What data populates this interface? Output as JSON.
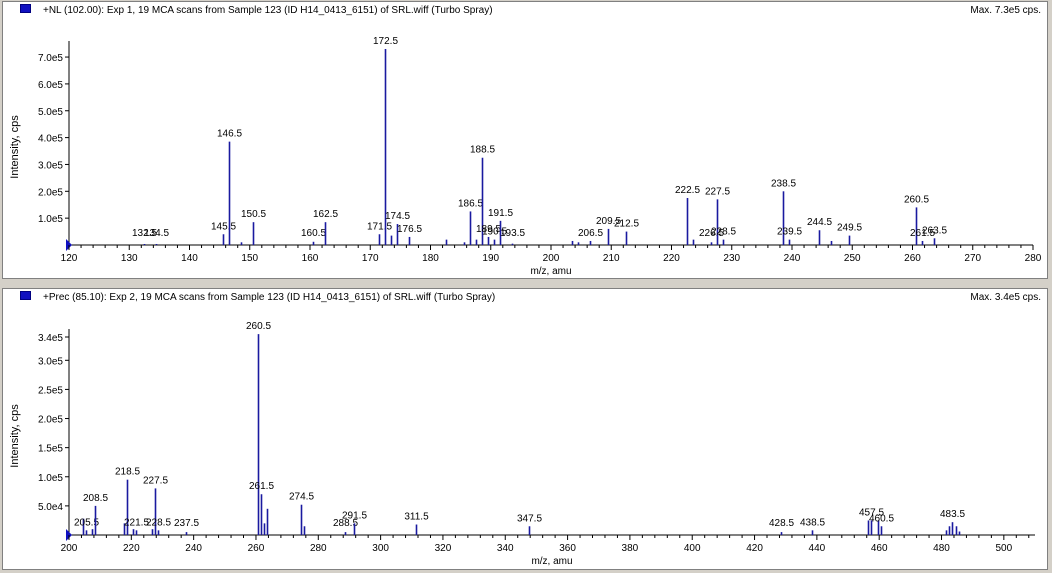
{
  "colors": {
    "peak": "#1a1aa0",
    "axis": "#000000",
    "icon": "#1010c0",
    "background": "#ffffff"
  },
  "icons": {
    "pane_icon": "blue-square-icon",
    "origin_marker": "blue-triangle-icon"
  },
  "panes": [
    {
      "title": "+NL (102.00): Exp 1, 19 MCA scans from Sample 123 (ID H14_0413_6151) of SRL.wiff (Turbo Spray)",
      "max": "Max. 7.3e5 cps."
    },
    {
      "title": "+Prec (85.10): Exp 2, 19 MCA scans from Sample 123 (ID H14_0413_6151) of SRL.wiff (Turbo Spray)",
      "max": "Max. 3.4e5 cps."
    }
  ],
  "chart_data": [
    {
      "type": "bar",
      "title": "+NL (102.00): Exp 1, 19 MCA scans from Sample 123 (ID H14_0413_6151) of SRL.wiff (Turbo Spray)",
      "xlabel": "m/z, amu",
      "ylabel": "Intensity, cps",
      "xlim": [
        120,
        280
      ],
      "ylim": [
        0,
        730000
      ],
      "xticks": [
        120,
        130,
        140,
        150,
        160,
        170,
        180,
        190,
        200,
        210,
        220,
        230,
        240,
        250,
        260,
        270,
        280
      ],
      "yticks": [
        {
          "v": 100000,
          "t": "1.0e5"
        },
        {
          "v": 200000,
          "t": "2.0e5"
        },
        {
          "v": 300000,
          "t": "3.0e5"
        },
        {
          "v": 400000,
          "t": "4.0e5"
        },
        {
          "v": 500000,
          "t": "5.0e5"
        },
        {
          "v": 600000,
          "t": "6.0e5"
        },
        {
          "v": 700000,
          "t": "7.0e5"
        }
      ],
      "peaks": [
        {
          "x": 132.5,
          "y": 2000,
          "label": "132.5"
        },
        {
          "x": 134.5,
          "y": 3000,
          "label": "134.5"
        },
        {
          "x": 145.5,
          "y": 40000,
          "label": "145.5"
        },
        {
          "x": 146.5,
          "y": 385000,
          "label": "146.5"
        },
        {
          "x": 148.5,
          "y": 10000
        },
        {
          "x": 150.5,
          "y": 85000,
          "label": "150.5"
        },
        {
          "x": 160.5,
          "y": 12000,
          "label": "160.5"
        },
        {
          "x": 162.5,
          "y": 85000,
          "label": "162.5"
        },
        {
          "x": 171.5,
          "y": 40000,
          "label": "171.5"
        },
        {
          "x": 172.5,
          "y": 730000,
          "label": "172.5"
        },
        {
          "x": 173.5,
          "y": 35000
        },
        {
          "x": 174.5,
          "y": 78000,
          "label": "174.5"
        },
        {
          "x": 176.5,
          "y": 30000,
          "label": "176.5"
        },
        {
          "x": 182.5,
          "y": 20000
        },
        {
          "x": 185.5,
          "y": 10000
        },
        {
          "x": 186.5,
          "y": 125000,
          "label": "186.5"
        },
        {
          "x": 187.5,
          "y": 20000
        },
        {
          "x": 188.5,
          "y": 325000,
          "label": "188.5"
        },
        {
          "x": 189.5,
          "y": 30000,
          "label": "189.5"
        },
        {
          "x": 190.5,
          "y": 20000,
          "label": "190.5"
        },
        {
          "x": 191.5,
          "y": 90000,
          "label": "191.5"
        },
        {
          "x": 193.5,
          "y": 5000,
          "label": "193.5"
        },
        {
          "x": 203.5,
          "y": 15000
        },
        {
          "x": 204.5,
          "y": 10000
        },
        {
          "x": 206.5,
          "y": 15000,
          "label": "206.5"
        },
        {
          "x": 209.5,
          "y": 60000,
          "label": "209.5"
        },
        {
          "x": 212.5,
          "y": 50000,
          "label": "212.5"
        },
        {
          "x": 222.5,
          "y": 175000,
          "label": "222.5"
        },
        {
          "x": 223.5,
          "y": 20000
        },
        {
          "x": 226.5,
          "y": 10000,
          "label": "226.5"
        },
        {
          "x": 227.5,
          "y": 170000,
          "label": "227.5"
        },
        {
          "x": 228.5,
          "y": 20000,
          "label": "228.5"
        },
        {
          "x": 238.5,
          "y": 200000,
          "label": "238.5"
        },
        {
          "x": 239.5,
          "y": 20000,
          "label": "239.5"
        },
        {
          "x": 244.5,
          "y": 55000,
          "label": "244.5"
        },
        {
          "x": 246.5,
          "y": 15000
        },
        {
          "x": 249.5,
          "y": 35000,
          "label": "249.5"
        },
        {
          "x": 260.5,
          "y": 140000,
          "label": "260.5"
        },
        {
          "x": 261.5,
          "y": 15000,
          "label": "261.5"
        },
        {
          "x": 263.5,
          "y": 25000,
          "label": "263.5"
        }
      ]
    },
    {
      "type": "bar",
      "title": "+Prec (85.10): Exp 2, 19 MCA scans from Sample 123 (ID H14_0413_6151) of SRL.wiff (Turbo Spray)",
      "xlabel": "m/z, amu",
      "ylabel": "Intensity, cps",
      "xlim": [
        200,
        510
      ],
      "ylim": [
        0,
        340000
      ],
      "xticks": [
        200,
        220,
        240,
        260,
        280,
        300,
        320,
        340,
        360,
        380,
        400,
        420,
        440,
        460,
        480,
        500
      ],
      "yticks": [
        {
          "v": 50000,
          "t": "5.0e4"
        },
        {
          "v": 100000,
          "t": "1.0e5"
        },
        {
          "v": 150000,
          "t": "1.5e5"
        },
        {
          "v": 200000,
          "t": "2.0e5"
        },
        {
          "v": 250000,
          "t": "2.5e5"
        },
        {
          "v": 300000,
          "t": "3.0e5"
        },
        {
          "v": 340000,
          "t": "3.4e5"
        }
      ],
      "peaks": [
        {
          "x": 204.5,
          "y": 28000
        },
        {
          "x": 205.5,
          "y": 8000,
          "label": "205.5"
        },
        {
          "x": 207.5,
          "y": 10000
        },
        {
          "x": 208.5,
          "y": 50000,
          "label": "208.5"
        },
        {
          "x": 217.5,
          "y": 20000
        },
        {
          "x": 218.5,
          "y": 95000,
          "label": "218.5"
        },
        {
          "x": 220.5,
          "y": 10000
        },
        {
          "x": 221.5,
          "y": 8000,
          "label": "221.5"
        },
        {
          "x": 226.5,
          "y": 10000
        },
        {
          "x": 227.5,
          "y": 80000,
          "label": "227.5"
        },
        {
          "x": 228.5,
          "y": 8000,
          "label": "228.5"
        },
        {
          "x": 237.5,
          "y": 5000,
          "label": "237.5"
        },
        {
          "x": 260.5,
          "y": 345000,
          "label": "260.5"
        },
        {
          "x": 261.5,
          "y": 70000,
          "label": "261.5"
        },
        {
          "x": 262.5,
          "y": 20000
        },
        {
          "x": 263.5,
          "y": 45000
        },
        {
          "x": 274.5,
          "y": 52000,
          "label": "274.5"
        },
        {
          "x": 275.5,
          "y": 15000
        },
        {
          "x": 288.5,
          "y": 5000,
          "label": "288.5"
        },
        {
          "x": 291.5,
          "y": 20000,
          "label": "291.5"
        },
        {
          "x": 311.5,
          "y": 18000,
          "label": "311.5"
        },
        {
          "x": 347.5,
          "y": 15000,
          "label": "347.5"
        },
        {
          "x": 428.5,
          "y": 5000,
          "label": "428.5"
        },
        {
          "x": 438.5,
          "y": 8000,
          "label": "438.5"
        },
        {
          "x": 456.5,
          "y": 25000
        },
        {
          "x": 457.5,
          "y": 25000,
          "label": "457.5"
        },
        {
          "x": 459.5,
          "y": 25000
        },
        {
          "x": 460.5,
          "y": 15000,
          "label": "460.5"
        },
        {
          "x": 481.5,
          "y": 8000
        },
        {
          "x": 482.5,
          "y": 15000
        },
        {
          "x": 483.5,
          "y": 22000,
          "label": "483.5"
        },
        {
          "x": 484.5,
          "y": 15000
        },
        {
          "x": 485.5,
          "y": 6000
        }
      ]
    }
  ]
}
